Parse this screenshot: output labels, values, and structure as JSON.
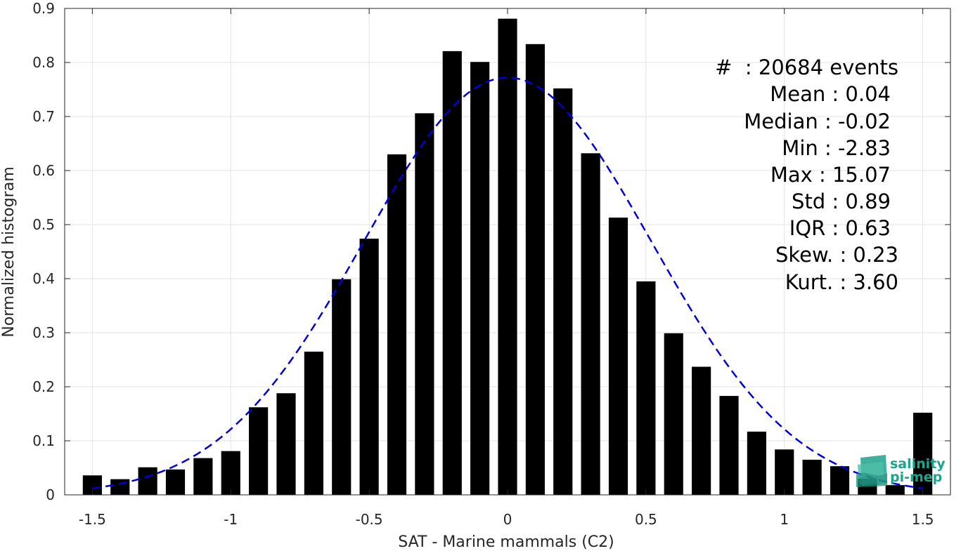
{
  "chart_data": {
    "type": "bar",
    "xlabel": "SAT - Marine mammals (C2)",
    "ylabel": "Normalized histogram",
    "xlim": [
      -1.6,
      1.6
    ],
    "ylim": [
      0,
      0.9
    ],
    "xticks": [
      -1.5,
      -1,
      -0.5,
      0,
      0.5,
      1,
      1.5
    ],
    "xtick_labels": [
      "-1.5",
      "-1",
      "-0.5",
      "0",
      "0.5",
      "1",
      "1.5"
    ],
    "yticks": [
      0,
      0.1,
      0.2,
      0.3,
      0.4,
      0.5,
      0.6,
      0.7,
      0.8,
      0.9
    ],
    "ytick_labels": [
      "0",
      "0.1",
      "0.2",
      "0.3",
      "0.4",
      "0.5",
      "0.6",
      "0.7",
      "0.8",
      "0.9"
    ],
    "grid": true,
    "bar_color": "#000000",
    "bin_width": 0.1,
    "bars": {
      "x": [
        -1.5,
        -1.4,
        -1.3,
        -1.2,
        -1.1,
        -1.0,
        -0.9,
        -0.8,
        -0.7,
        -0.6,
        -0.5,
        -0.4,
        -0.3,
        -0.2,
        -0.1,
        0.0,
        0.1,
        0.2,
        0.3,
        0.4,
        0.5,
        0.6,
        0.7,
        0.8,
        0.9,
        1.0,
        1.1,
        1.2,
        1.3,
        1.4,
        1.5
      ],
      "values": [
        0.036,
        0.029,
        0.051,
        0.047,
        0.068,
        0.081,
        0.162,
        0.188,
        0.265,
        0.399,
        0.474,
        0.63,
        0.706,
        0.821,
        0.801,
        0.881,
        0.834,
        0.752,
        0.632,
        0.513,
        0.395,
        0.299,
        0.237,
        0.183,
        0.117,
        0.084,
        0.065,
        0.053,
        0.03,
        0.018,
        0.152
      ]
    },
    "fit": {
      "type": "normal",
      "style": "dashed",
      "color": "#0000dd",
      "mean": 0.0,
      "std": 0.52,
      "peak": 0.772,
      "x_range": [
        -1.5,
        1.5
      ]
    }
  },
  "stats": {
    "lines": [
      "#  : 20684 events",
      "Mean : 0.04",
      "Median : -0.02",
      "Min : -2.83",
      "Max : 15.07",
      "Std : 0.89",
      "IQR : 0.63",
      "Skew. : 0.23",
      "Kurt. : 3.60"
    ]
  },
  "logo": {
    "line1": "salinity",
    "line2": "pi-mep",
    "color": "#1aa58f"
  }
}
